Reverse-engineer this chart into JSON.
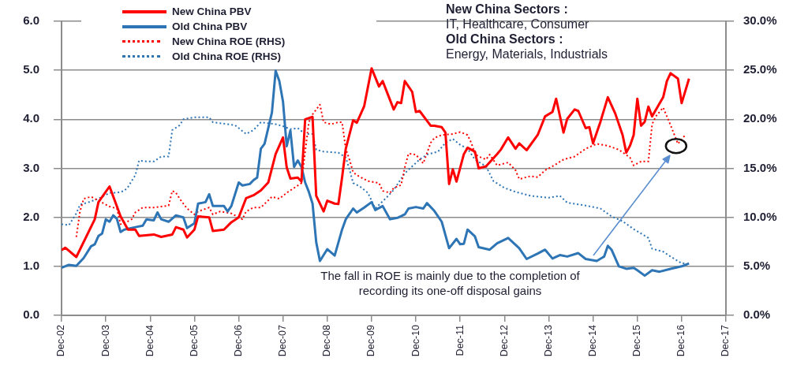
{
  "chart_data": {
    "type": "line",
    "legend": "top left",
    "grid": "y",
    "xlim": [
      "2002-12",
      "2017-12"
    ],
    "xticks": [
      {
        "value": "2002-12",
        "label": "Dec-02"
      },
      {
        "value": "2003-12",
        "label": "Dec-03"
      },
      {
        "value": "2004-12",
        "label": "Dec-04"
      },
      {
        "value": "2005-12",
        "label": "Dec-05"
      },
      {
        "value": "2006-12",
        "label": "Dec-06"
      },
      {
        "value": "2007-12",
        "label": "Dec-07"
      },
      {
        "value": "2008-12",
        "label": "Dec-08"
      },
      {
        "value": "2009-12",
        "label": "Dec-09"
      },
      {
        "value": "2010-12",
        "label": "Dec-10"
      },
      {
        "value": "2011-12",
        "label": "Dec-11"
      },
      {
        "value": "2012-12",
        "label": "Dec-12"
      },
      {
        "value": "2013-12",
        "label": "Dec-13"
      },
      {
        "value": "2014-12",
        "label": "Dec-14"
      },
      {
        "value": "2015-12",
        "label": "Dec-15"
      },
      {
        "value": "2016-12",
        "label": "Dec-16"
      },
      {
        "value": "2017-12",
        "label": "Dec-17"
      }
    ],
    "ylim": [
      0,
      6
    ],
    "yticks": [
      {
        "value": 0,
        "label": "0.0"
      },
      {
        "value": 1,
        "label": "1.0"
      },
      {
        "value": 2,
        "label": "2.0"
      },
      {
        "value": 3,
        "label": "3.0"
      },
      {
        "value": 4,
        "label": "4.0"
      },
      {
        "value": 5,
        "label": "5.0"
      },
      {
        "value": 6,
        "label": "6.0"
      }
    ],
    "y2lim": [
      0,
      30
    ],
    "y2ticks": [
      {
        "value": 0,
        "label": "0.0%"
      },
      {
        "value": 5,
        "label": "5.0%"
      },
      {
        "value": 10,
        "label": "10.0%"
      },
      {
        "value": 15,
        "label": "15.0%"
      },
      {
        "value": 20,
        "label": "20.0%"
      },
      {
        "value": 25,
        "label": "25.0%"
      },
      {
        "value": 30,
        "label": "30.0%"
      }
    ],
    "annotations": [
      "New China Sectors :\nIT, Healthcare, Consumer",
      "Old China Sectors :\nEnergy, Materials, Industrials",
      "The fall in ROE is mainly due to the completion of recording its one-off disposal gains"
    ],
    "series": [
      {
        "name": "New China PBV",
        "color": "#ff0000",
        "line_style": "solid",
        "x": [
          "2002-12",
          "2003-01",
          "2003-04",
          "2003-09",
          "2003-10",
          "2004-01",
          "2004-04",
          "2004-06",
          "2004-08",
          "2004-09",
          "2005-01",
          "2005-03",
          "2005-06",
          "2005-07",
          "2005-09",
          "2005-10",
          "2005-12",
          "2006-01",
          "2006-04",
          "2006-05",
          "2006-08",
          "2006-10",
          "2006-12",
          "2007-02",
          "2007-04",
          "2007-06",
          "2007-08",
          "2007-10",
          "2007-12",
          "2008-01",
          "2008-02",
          "2008-04",
          "2008-05",
          "2008-06",
          "2008-08",
          "2008-09",
          "2008-11",
          "2008-12",
          "2009-02",
          "2009-03",
          "2009-04",
          "2009-05",
          "2009-07",
          "2009-08",
          "2009-10",
          "2009-12",
          "2010-02",
          "2010-03",
          "2010-06",
          "2010-07",
          "2010-08",
          "2010-09",
          "2010-11",
          "2010-12",
          "2011-01",
          "2011-04",
          "2011-05",
          "2011-07",
          "2011-08",
          "2011-09",
          "2011-10",
          "2011-11",
          "2012-01",
          "2012-02",
          "2012-04",
          "2012-05",
          "2012-07",
          "2012-10",
          "2012-11",
          "2013-01",
          "2013-03",
          "2013-04",
          "2013-06",
          "2013-09",
          "2013-11",
          "2014-01",
          "2014-02",
          "2014-04",
          "2014-05",
          "2014-07",
          "2014-08",
          "2014-10",
          "2014-11",
          "2014-12",
          "2015-02",
          "2015-04",
          "2015-06",
          "2015-08",
          "2015-09",
          "2015-10",
          "2015-11",
          "2015-12",
          "2016-01",
          "2016-02",
          "2016-03",
          "2016-04",
          "2016-07",
          "2016-08",
          "2016-09",
          "2016-11",
          "2016-12",
          "2017-02"
        ],
        "values": [
          1.33,
          1.38,
          1.19,
          1.96,
          2.31,
          2.63,
          2.02,
          1.75,
          1.75,
          1.62,
          1.65,
          1.6,
          1.65,
          1.8,
          1.75,
          1.59,
          1.75,
          2.02,
          2.0,
          1.72,
          1.75,
          1.9,
          2.0,
          2.39,
          2.45,
          2.55,
          2.71,
          3.29,
          3.63,
          3.02,
          2.79,
          2.81,
          2.73,
          4.0,
          4.05,
          2.44,
          2.12,
          2.34,
          2.28,
          2.27,
          2.81,
          3.4,
          3.98,
          3.93,
          4.27,
          5.04,
          4.67,
          4.78,
          4.2,
          4.35,
          4.33,
          4.78,
          4.56,
          4.15,
          4.17,
          3.87,
          3.87,
          3.84,
          3.73,
          2.68,
          2.98,
          2.73,
          3.29,
          3.42,
          3.34,
          3.0,
          3.04,
          3.29,
          3.38,
          3.63,
          3.4,
          3.51,
          3.37,
          3.68,
          4.06,
          4.15,
          4.42,
          3.73,
          4.01,
          4.2,
          4.17,
          3.82,
          3.84,
          3.51,
          3.95,
          4.45,
          4.12,
          3.68,
          3.32,
          3.46,
          3.68,
          4.42,
          3.87,
          3.95,
          4.26,
          4.06,
          4.45,
          4.78,
          4.94,
          4.83,
          4.33,
          4.83
        ]
      },
      {
        "name": "Old China PBV",
        "color": "#2e75b6",
        "line_style": "solid",
        "x": [
          "2002-12",
          "2003-02",
          "2003-04",
          "2003-06",
          "2003-08",
          "2003-09",
          "2003-10",
          "2003-11",
          "2003-12",
          "2004-01",
          "2004-02",
          "2004-03",
          "2004-04",
          "2004-05",
          "2004-08",
          "2004-10",
          "2004-11",
          "2005-01",
          "2005-02",
          "2005-03",
          "2005-05",
          "2005-07",
          "2005-09",
          "2005-10",
          "2005-12",
          "2006-01",
          "2006-03",
          "2006-04",
          "2006-05",
          "2006-08",
          "2006-09",
          "2006-10",
          "2006-12",
          "2007-01",
          "2007-03",
          "2007-04",
          "2007-05",
          "2007-06",
          "2007-07",
          "2007-09",
          "2007-10",
          "2007-11",
          "2007-12",
          "2008-01",
          "2008-02",
          "2008-03",
          "2008-04",
          "2008-05",
          "2008-06",
          "2008-07",
          "2008-08",
          "2008-09",
          "2008-10",
          "2008-12",
          "2009-02",
          "2009-04",
          "2009-05",
          "2009-07",
          "2009-08",
          "2009-10",
          "2009-12",
          "2010-01",
          "2010-03",
          "2010-05",
          "2010-07",
          "2010-09",
          "2010-10",
          "2010-12",
          "2011-02",
          "2011-03",
          "2011-05",
          "2011-07",
          "2011-08",
          "2011-09",
          "2011-11",
          "2011-12",
          "2012-01",
          "2012-02",
          "2012-04",
          "2012-05",
          "2012-08",
          "2012-10",
          "2013-01",
          "2013-04",
          "2013-06",
          "2013-09",
          "2013-11",
          "2014-01",
          "2014-03",
          "2014-05",
          "2014-08",
          "2014-10",
          "2015-01",
          "2015-03",
          "2015-04",
          "2015-05",
          "2015-07",
          "2015-09",
          "2015-11",
          "2015-12",
          "2016-02",
          "2016-04",
          "2016-06",
          "2016-09",
          "2016-12",
          "2017-02"
        ],
        "values": [
          0.97,
          1.03,
          1.01,
          1.17,
          1.41,
          1.45,
          1.62,
          1.67,
          1.96,
          1.91,
          2.04,
          1.97,
          1.7,
          1.75,
          1.8,
          1.83,
          1.96,
          1.94,
          2.1,
          1.96,
          1.91,
          2.04,
          2.0,
          1.78,
          1.88,
          2.28,
          2.31,
          2.47,
          2.23,
          2.23,
          2.12,
          2.23,
          2.71,
          2.65,
          2.68,
          2.76,
          2.81,
          3.4,
          3.5,
          4.14,
          4.99,
          4.78,
          4.36,
          3.45,
          3.77,
          3.03,
          3.16,
          3.03,
          2.71,
          2.52,
          2.28,
          1.49,
          1.11,
          1.35,
          1.22,
          1.75,
          1.96,
          2.18,
          2.1,
          2.2,
          2.31,
          2.15,
          2.23,
          1.96,
          1.99,
          2.06,
          2.18,
          2.21,
          2.18,
          2.29,
          2.13,
          1.91,
          1.64,
          1.37,
          1.56,
          1.45,
          1.46,
          1.75,
          1.61,
          1.39,
          1.34,
          1.47,
          1.58,
          1.37,
          1.15,
          1.26,
          1.34,
          1.16,
          1.23,
          1.2,
          1.27,
          1.15,
          1.11,
          1.2,
          1.42,
          1.34,
          1.0,
          0.95,
          0.97,
          0.92,
          0.81,
          0.92,
          0.89,
          0.95,
          1.0,
          1.06
        ]
      },
      {
        "name": "New China ROE (RHS)",
        "color": "#ff0000",
        "line_style": "dotted",
        "axis": "y2",
        "x": [
          "2003-04",
          "2003-05",
          "2003-06",
          "2003-08",
          "2003-10",
          "2004-01",
          "2004-03",
          "2004-04",
          "2004-06",
          "2004-07",
          "2004-08",
          "2004-10",
          "2005-01",
          "2005-03",
          "2005-05",
          "2005-06",
          "2005-07",
          "2005-08",
          "2005-10",
          "2005-12",
          "2006-01",
          "2006-04",
          "2006-05",
          "2006-07",
          "2006-10",
          "2007-01",
          "2007-02",
          "2007-04",
          "2007-06",
          "2007-09",
          "2007-11",
          "2008-01",
          "2008-03",
          "2008-05",
          "2008-06",
          "2008-07",
          "2008-08",
          "2008-10",
          "2008-11",
          "2009-01",
          "2009-03",
          "2009-04",
          "2009-05",
          "2009-06",
          "2009-07",
          "2009-08",
          "2009-11",
          "2010-02",
          "2010-03",
          "2010-05",
          "2010-06",
          "2010-08",
          "2010-09",
          "2010-10",
          "2010-12",
          "2011-02",
          "2011-04",
          "2011-05",
          "2011-07",
          "2011-10",
          "2011-12",
          "2012-02",
          "2012-03",
          "2012-04",
          "2012-05",
          "2012-07",
          "2012-08",
          "2012-10",
          "2013-01",
          "2013-03",
          "2013-04",
          "2013-07",
          "2013-09",
          "2013-11",
          "2014-01",
          "2014-04",
          "2014-07",
          "2014-10",
          "2015-01",
          "2015-04",
          "2015-07",
          "2015-10",
          "2015-11",
          "2016-01",
          "2016-03",
          "2016-04",
          "2016-05",
          "2016-07",
          "2016-09",
          "2016-11",
          "2017-01"
        ],
        "values": [
          8.0,
          10.6,
          11.9,
          12.1,
          11.7,
          11.1,
          10.9,
          9.3,
          9.6,
          9.8,
          10.5,
          11.0,
          11.0,
          11.1,
          11.2,
          12.7,
          12.5,
          11.9,
          10.9,
          10.3,
          10.6,
          11.0,
          10.3,
          10.6,
          10.4,
          9.8,
          10.6,
          11.0,
          11.0,
          12.1,
          11.9,
          12.5,
          13.0,
          13.5,
          16.7,
          19.7,
          20.5,
          21.5,
          19.7,
          19.5,
          19.7,
          19.7,
          17.0,
          15.9,
          14.6,
          14.3,
          13.7,
          13.5,
          12.7,
          12.5,
          13.0,
          13.3,
          15.1,
          16.5,
          16.4,
          15.5,
          17.6,
          18.1,
          18.4,
          18.5,
          18.7,
          18.4,
          17.6,
          16.5,
          16.2,
          15.9,
          16.4,
          15.3,
          15.6,
          14.8,
          13.9,
          14.2,
          14.1,
          14.8,
          15.2,
          15.9,
          16.2,
          17.0,
          17.5,
          17.3,
          16.9,
          16.1,
          15.3,
          15.7,
          15.7,
          19.5,
          20.3,
          21.2,
          19.4,
          17.5,
          18.4
        ]
      },
      {
        "name": "Old China ROE (RHS)",
        "color": "#2e75b6",
        "line_style": "dotted",
        "axis": "y2",
        "x": [
          "2002-12",
          "2003-02",
          "2003-04",
          "2003-05",
          "2003-07",
          "2003-10",
          "2004-01",
          "2004-03",
          "2004-05",
          "2004-06",
          "2004-08",
          "2004-09",
          "2004-11",
          "2005-01",
          "2005-03",
          "2005-05",
          "2005-06",
          "2005-08",
          "2005-09",
          "2005-12",
          "2006-04",
          "2006-05",
          "2006-09",
          "2006-11",
          "2007-02",
          "2007-04",
          "2007-06",
          "2007-10",
          "2007-12",
          "2008-02",
          "2008-04",
          "2008-06",
          "2008-08",
          "2008-09",
          "2008-11",
          "2009-03",
          "2009-05",
          "2009-06",
          "2009-07",
          "2009-09",
          "2009-11",
          "2010-01",
          "2010-04",
          "2010-06",
          "2010-09",
          "2011-01",
          "2011-03",
          "2011-06",
          "2011-08",
          "2011-10",
          "2011-12",
          "2012-02",
          "2012-04",
          "2012-07",
          "2012-09",
          "2012-12",
          "2013-03",
          "2013-07",
          "2013-12",
          "2014-03",
          "2014-05",
          "2014-10",
          "2015-02",
          "2015-05",
          "2015-08",
          "2015-11",
          "2016-03",
          "2016-04",
          "2016-07",
          "2016-09",
          "2016-12",
          "2017-01"
        ],
        "values": [
          9.3,
          9.2,
          10.4,
          11.3,
          11.5,
          11.9,
          12.5,
          12.5,
          12.7,
          13.1,
          14.3,
          15.8,
          15.7,
          15.7,
          16.2,
          16.2,
          18.9,
          19.4,
          20.0,
          20.2,
          20.2,
          19.7,
          19.5,
          19.4,
          18.5,
          18.9,
          19.7,
          19.5,
          19.3,
          19.0,
          19.1,
          18.5,
          18.5,
          16.9,
          16.7,
          16.6,
          16.1,
          14.9,
          13.5,
          13.1,
          12.5,
          10.9,
          12.0,
          12.8,
          14.5,
          15.9,
          16.4,
          16.7,
          17.6,
          18.0,
          17.4,
          17.0,
          15.9,
          15.2,
          13.7,
          13.0,
          12.6,
          12.2,
          12.0,
          12.2,
          11.5,
          11.2,
          10.9,
          10.1,
          9.6,
          8.8,
          7.9,
          6.8,
          6.5,
          6.0,
          5.3,
          5.3
        ]
      }
    ]
  }
}
